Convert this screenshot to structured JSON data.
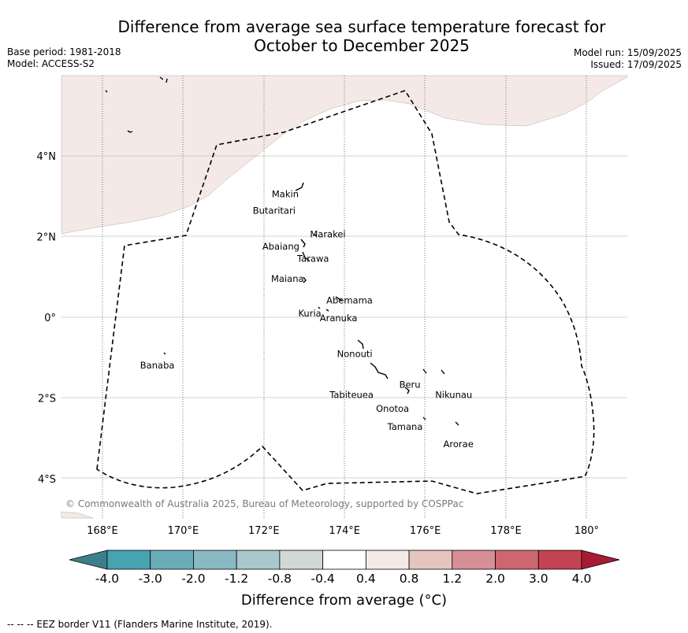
{
  "title_line1": "Difference from average sea surface temperature forecast for",
  "title_line2": "October to December 2025",
  "base_period": "Base period: 1981-2018",
  "model": "Model: ACCESS-S2",
  "model_run": "Model run: 15/09/2025",
  "issued": "Issued: 17/09/2025",
  "copyright": "© Commonwealth of Australia 2025, Bureau of Meteorology, supported by COSPPac",
  "lat_labels": [
    "4°N",
    "2°N",
    "0°",
    "2°S",
    "4°S"
  ],
  "lon_labels": [
    "168°E",
    "170°E",
    "172°E",
    "174°E",
    "176°E",
    "178°E",
    "180°"
  ],
  "islands": [
    {
      "name": "Makin",
      "lon": 172.9,
      "lat": 3.1
    },
    {
      "name": "Butaritari",
      "lon": 172.8,
      "lat": 3.0
    },
    {
      "name": "Marakei",
      "lon": 173.3,
      "lat": 2.0
    },
    {
      "name": "Abaiang",
      "lon": 172.9,
      "lat": 1.8
    },
    {
      "name": "Tarawa",
      "lon": 173.0,
      "lat": 1.4
    },
    {
      "name": "Maiana",
      "lon": 173.0,
      "lat": 1.0
    },
    {
      "name": "Abemama",
      "lon": 173.9,
      "lat": 0.4
    },
    {
      "name": "Kuria",
      "lon": 173.4,
      "lat": 0.2
    },
    {
      "name": "Aranuka",
      "lon": 173.6,
      "lat": 0.2
    },
    {
      "name": "Nonouti",
      "lon": 174.4,
      "lat": -0.6
    },
    {
      "name": "Banaba",
      "lon": 169.5,
      "lat": -0.9
    },
    {
      "name": "Beru",
      "lon": 176.0,
      "lat": -1.3
    },
    {
      "name": "Nikunau",
      "lon": 176.5,
      "lat": -1.4
    },
    {
      "name": "Tabiteuea",
      "lon": 174.9,
      "lat": -1.4
    },
    {
      "name": "Onotoa",
      "lon": 175.6,
      "lat": -1.8
    },
    {
      "name": "Tamana",
      "lon": 176.0,
      "lat": -2.5
    },
    {
      "name": "Arorae",
      "lon": 176.8,
      "lat": -2.6
    }
  ],
  "colorbar": {
    "ticks": [
      "-4.0",
      "-3.0",
      "-2.0",
      "-1.2",
      "-0.8",
      "-0.4",
      "0.4",
      "0.8",
      "1.2",
      "2.0",
      "3.0",
      "4.0"
    ],
    "colors": [
      "#3c7f8c",
      "#47a2b1",
      "#6aadb9",
      "#89b9c3",
      "#a8c8cc",
      "#d2d8d8",
      "#ffffff",
      "#f4e9e7",
      "#e6c5c1",
      "#d68f96",
      "#cc6670",
      "#c24452",
      "#a61c35"
    ],
    "label": "Difference from average (°C)"
  },
  "eez_legend": "--  --  -- EEZ border V11 (Flanders Marine Institute, 2019).",
  "shading": {
    "value_range": "0.4 to 0.8"
  }
}
